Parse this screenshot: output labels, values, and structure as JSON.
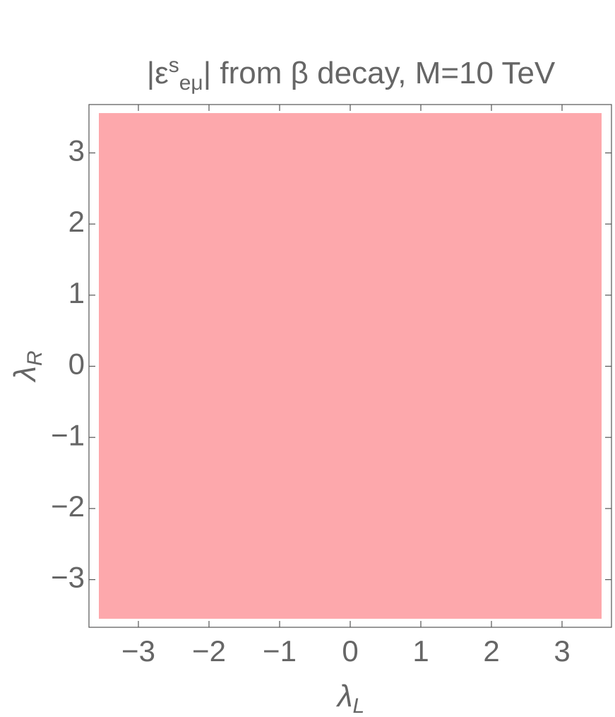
{
  "chart_data": {
    "type": "region",
    "title": [
      {
        "text": "|ε"
      },
      {
        "text": "s",
        "shift": "super"
      },
      {
        "text": "eμ",
        "shift": "sub"
      },
      {
        "text": "| from β decay, M=10 TeV"
      }
    ],
    "xlabel": [
      {
        "text": "λ",
        "style": "italic"
      },
      {
        "text": "L",
        "shift": "sub",
        "style": "italic"
      }
    ],
    "ylabel": [
      {
        "text": "λ",
        "style": "italic"
      },
      {
        "text": "R",
        "shift": "sub",
        "style": "italic"
      }
    ],
    "xlim": [
      -3.7,
      3.7
    ],
    "ylim": [
      -3.67,
      3.68
    ],
    "xticks": [
      {
        "value": -3,
        "label": "−3"
      },
      {
        "value": -2,
        "label": "−2"
      },
      {
        "value": -1,
        "label": "−1"
      },
      0,
      1,
      2,
      3
    ],
    "yticks": [
      {
        "value": -3,
        "label": "−3"
      },
      {
        "value": -2,
        "label": "−2"
      },
      {
        "value": -1,
        "label": "−1"
      },
      0,
      1,
      2,
      3
    ],
    "regions": [
      {
        "xrange": [
          -3.56,
          3.56
        ],
        "yrange": [
          -3.55,
          3.56
        ],
        "color": "#fda8ac"
      }
    ]
  }
}
